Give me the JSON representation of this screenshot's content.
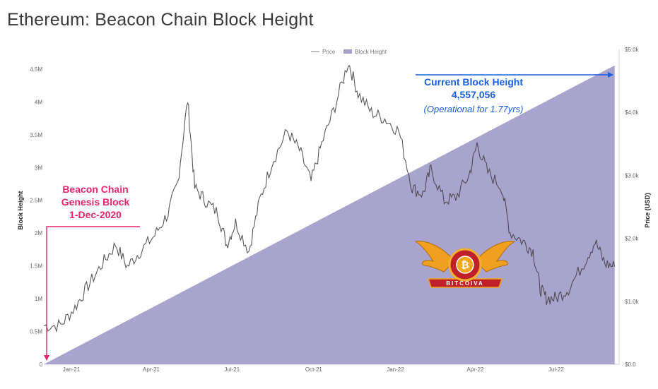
{
  "title": "Ethereum: Beacon Chain Block Height",
  "chart_data": {
    "type": "area",
    "legend": [
      "Price",
      "Block Height"
    ],
    "ylabel": "Block Height",
    "y2label": "Price (USD)",
    "y_ticks": [
      "0",
      "0.5M",
      "1M",
      "1.5M",
      "2M",
      "2.5M",
      "3M",
      "3.5M",
      "4M",
      "4.5M"
    ],
    "y2_ticks": [
      "$0.0",
      "$1.0k",
      "$2.0k",
      "$3.0k",
      "$4.0k",
      "$5.0k"
    ],
    "x_ticks": [
      "Jan-21",
      "Apr-21",
      "Jul-21",
      "Oct-21",
      "Jan-22",
      "Apr-22",
      "Jul-22"
    ],
    "ylim": [
      0,
      4800000
    ],
    "y2lim": [
      0,
      5000
    ],
    "series": [
      {
        "name": "Block Height",
        "color": "#a49fcb",
        "points": [
          [
            "2020-12-01",
            0
          ],
          [
            "2022-09-05",
            4557056
          ]
        ]
      },
      {
        "name": "Price",
        "color": "#3d3d3d",
        "points": [
          [
            "2020-12-01",
            610
          ],
          [
            "2020-12-20",
            620
          ],
          [
            "2021-01-05",
            900
          ],
          [
            "2021-01-20",
            1250
          ],
          [
            "2021-02-05",
            1600
          ],
          [
            "2021-02-20",
            1900
          ],
          [
            "2021-03-05",
            1550
          ],
          [
            "2021-03-20",
            1800
          ],
          [
            "2021-04-05",
            2050
          ],
          [
            "2021-04-20",
            2400
          ],
          [
            "2021-05-01",
            2900
          ],
          [
            "2021-05-12",
            4200
          ],
          [
            "2021-05-20",
            2800
          ],
          [
            "2021-06-01",
            2600
          ],
          [
            "2021-06-15",
            2400
          ],
          [
            "2021-06-25",
            1900
          ],
          [
            "2021-07-05",
            2250
          ],
          [
            "2021-07-20",
            1800
          ],
          [
            "2021-08-01",
            2600
          ],
          [
            "2021-08-15",
            3200
          ],
          [
            "2021-09-01",
            3700
          ],
          [
            "2021-09-15",
            3400
          ],
          [
            "2021-09-28",
            2900
          ],
          [
            "2021-10-10",
            3500
          ],
          [
            "2021-10-25",
            4100
          ],
          [
            "2021-11-09",
            4800
          ],
          [
            "2021-11-20",
            4300
          ],
          [
            "2021-12-05",
            4000
          ],
          [
            "2021-12-20",
            3900
          ],
          [
            "2022-01-05",
            3700
          ],
          [
            "2022-01-20",
            2800
          ],
          [
            "2022-02-01",
            2700
          ],
          [
            "2022-02-10",
            3100
          ],
          [
            "2022-02-25",
            2600
          ],
          [
            "2022-03-10",
            2650
          ],
          [
            "2022-03-25",
            3000
          ],
          [
            "2022-04-03",
            3500
          ],
          [
            "2022-04-15",
            3050
          ],
          [
            "2022-05-01",
            2800
          ],
          [
            "2022-05-10",
            2100
          ],
          [
            "2022-05-25",
            1950
          ],
          [
            "2022-06-05",
            1800
          ],
          [
            "2022-06-13",
            1200
          ],
          [
            "2022-06-20",
            1050
          ],
          [
            "2022-07-01",
            1050
          ],
          [
            "2022-07-15",
            1200
          ],
          [
            "2022-08-01",
            1600
          ],
          [
            "2022-08-14",
            1950
          ],
          [
            "2022-08-25",
            1600
          ],
          [
            "2022-09-05",
            1550
          ]
        ]
      }
    ]
  },
  "annotations": {
    "genesis": [
      "Beacon Chain",
      "Genesis Block",
      "1-Dec-2020"
    ],
    "current": [
      "Current Block Height",
      "4,557,056",
      "(Operational for 1.77yrs)"
    ]
  },
  "watermark": {
    "text": "BITCOIVA",
    "icon": "bitcoin-icon"
  }
}
